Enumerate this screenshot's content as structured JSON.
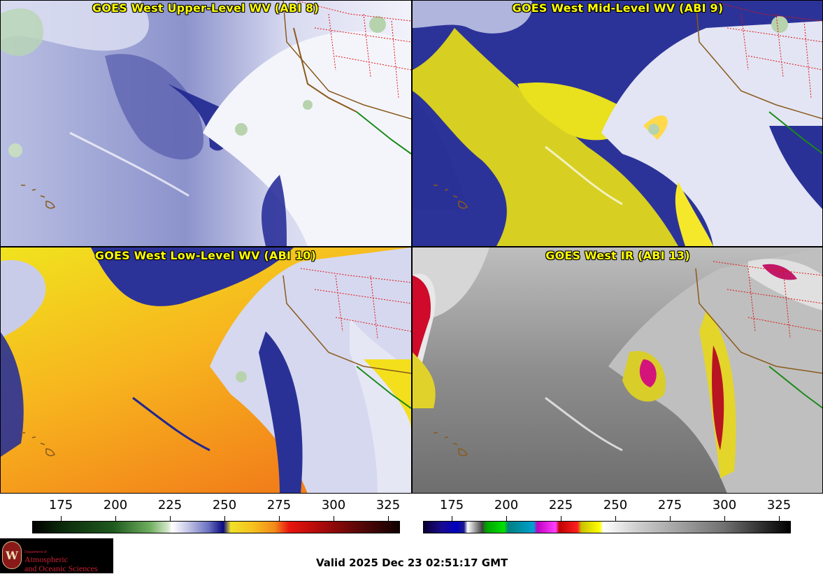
{
  "panels": [
    {
      "title": "GOES West Upper-Level WV (ABI 8)"
    },
    {
      "title": "GOES West Mid-Level WV (ABI 9)"
    },
    {
      "title": "GOES West Low-Level WV (ABI 10)"
    },
    {
      "title": "GOES West IR (ABI 13)"
    }
  ],
  "colorbars": [
    {
      "ticks": [
        "175",
        "200",
        "225",
        "250",
        "275",
        "300",
        "325"
      ]
    },
    {
      "ticks": [
        "175",
        "200",
        "225",
        "250",
        "275",
        "300",
        "325"
      ]
    }
  ],
  "logo": {
    "dept": "Department of",
    "line1": "Atmospheric",
    "line2": "and Oceanic Sciences",
    "seal": "W"
  },
  "footer": {
    "valid": "Valid 2025 Dec 23 02:51:17 GMT"
  }
}
